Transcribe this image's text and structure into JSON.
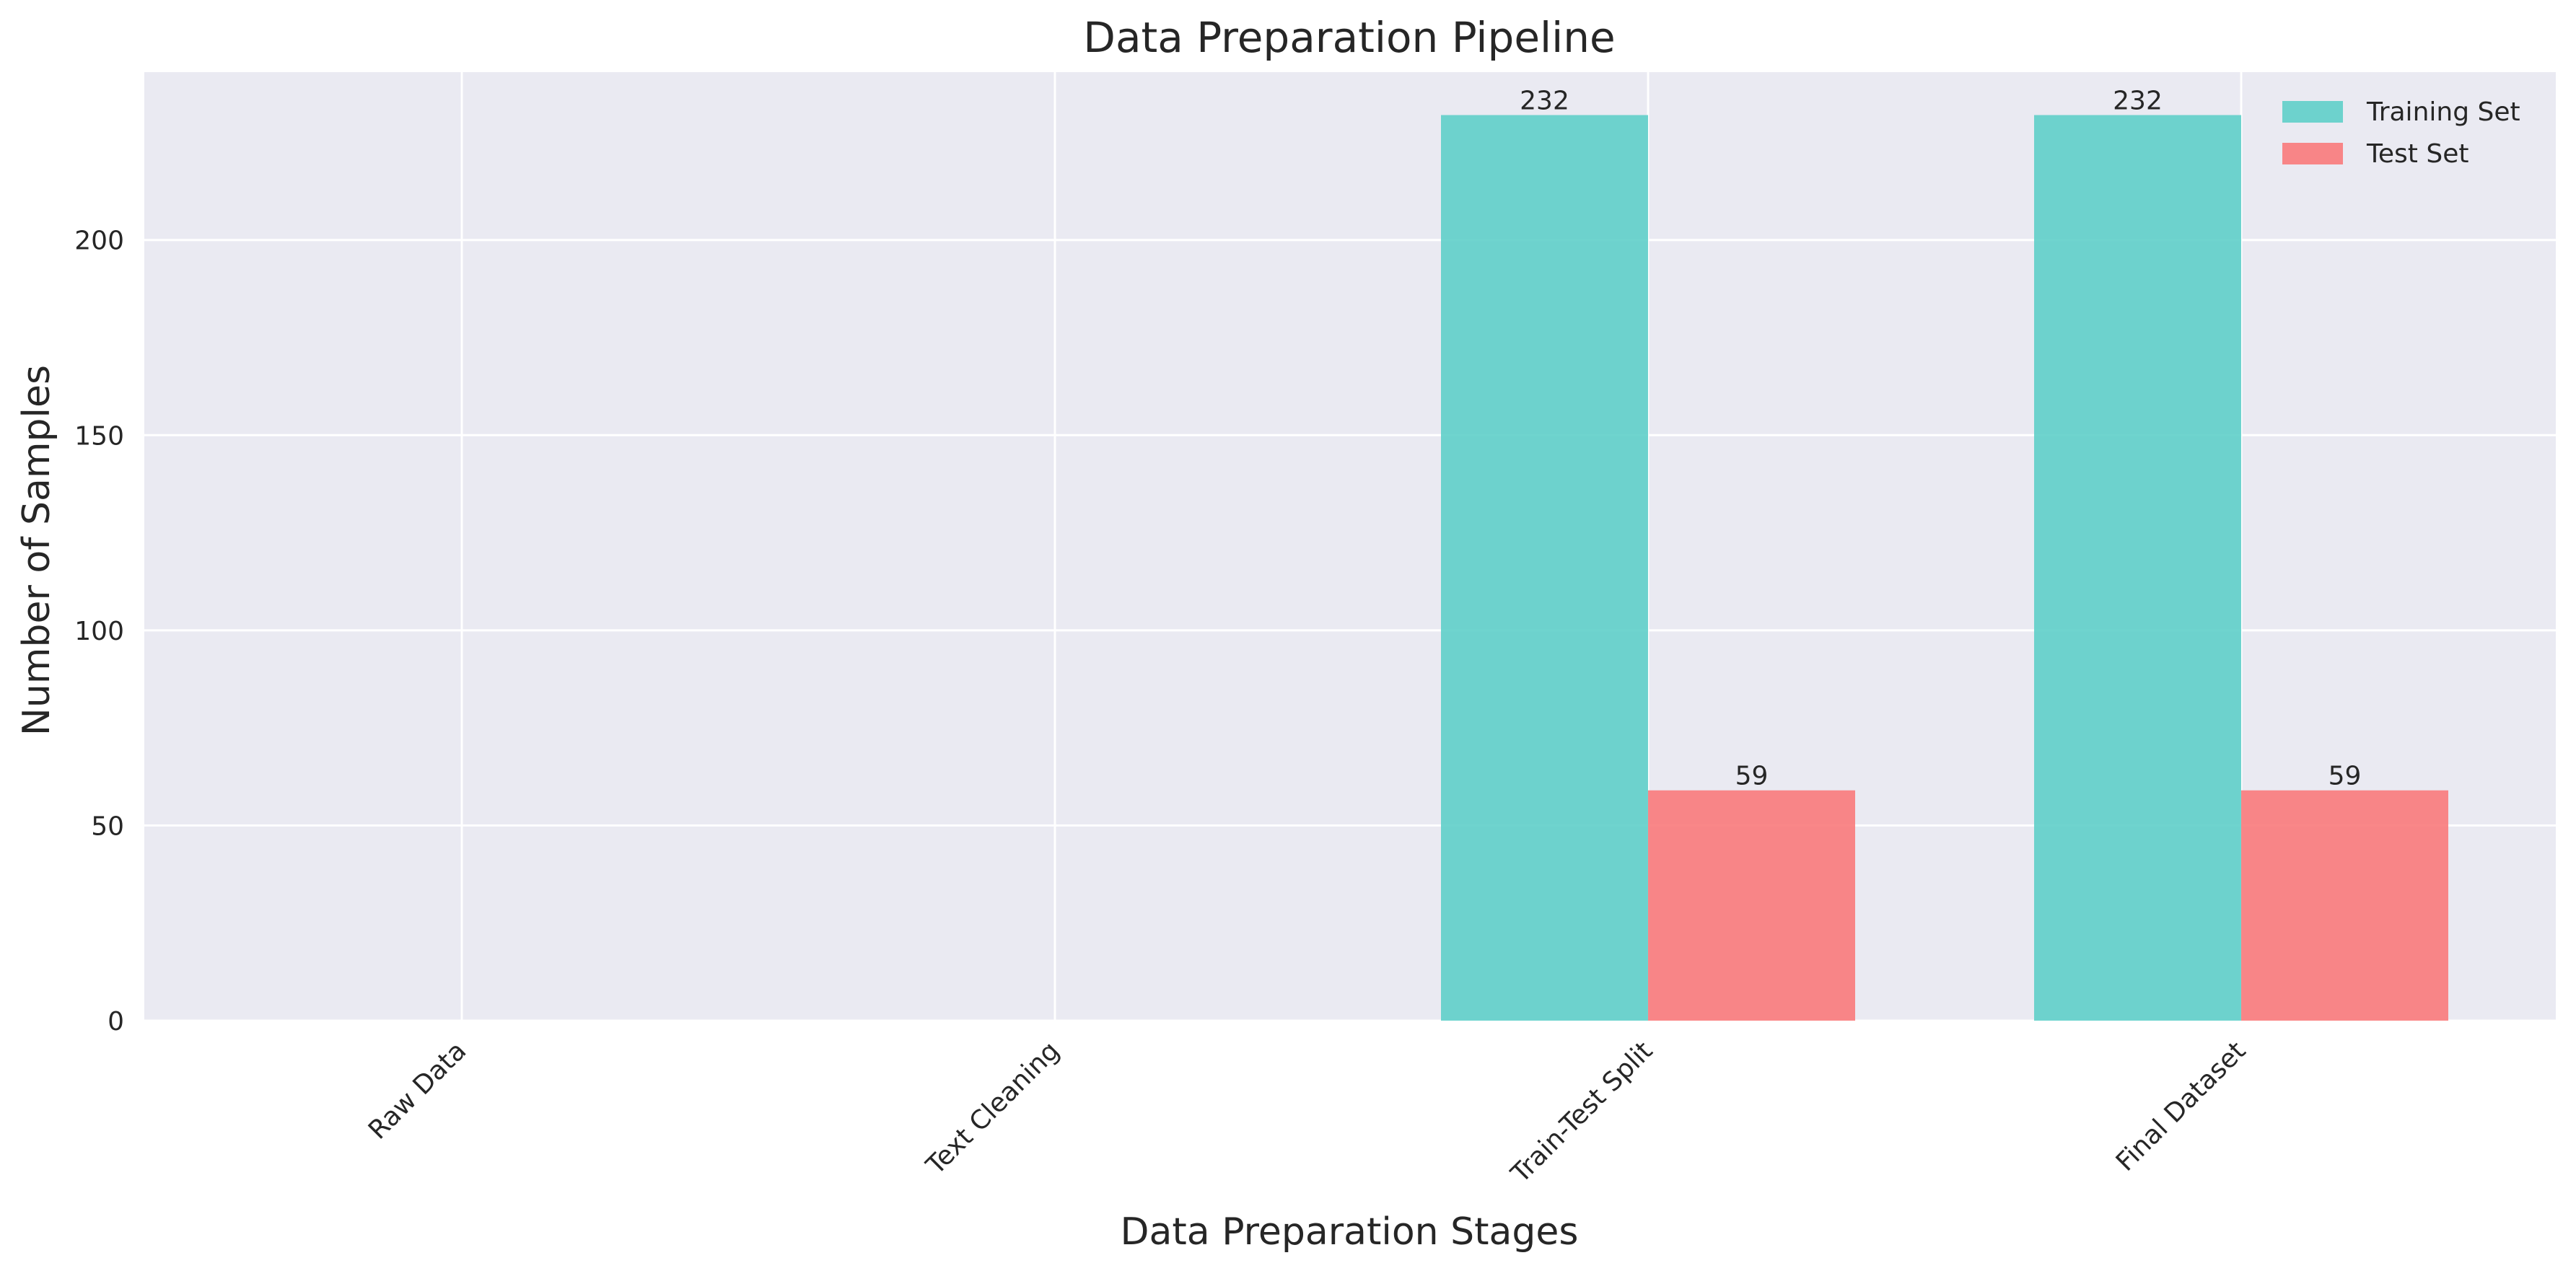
{
  "chart_data": {
    "type": "bar",
    "title": "Data Preparation Pipeline",
    "xlabel": "Data Preparation Stages",
    "ylabel": "Number of Samples",
    "categories": [
      "Raw Data",
      "Text Cleaning",
      "Train-Test Split",
      "Final Dataset"
    ],
    "series": [
      {
        "name": "Training Set",
        "color": "#5fcfc9",
        "values": [
          0,
          0,
          232,
          232
        ],
        "labels": [
          "",
          "",
          "232",
          "232"
        ]
      },
      {
        "name": "Test Set",
        "color": "#fa7a7b",
        "values": [
          0,
          0,
          59,
          59
        ],
        "labels": [
          "",
          "",
          "59",
          "59"
        ]
      }
    ],
    "ylim": [
      0,
      243
    ],
    "yticks": [
      0,
      50,
      100,
      150,
      200
    ],
    "grid": true,
    "legend_position": "top-right",
    "background": "#eaeaf2"
  }
}
